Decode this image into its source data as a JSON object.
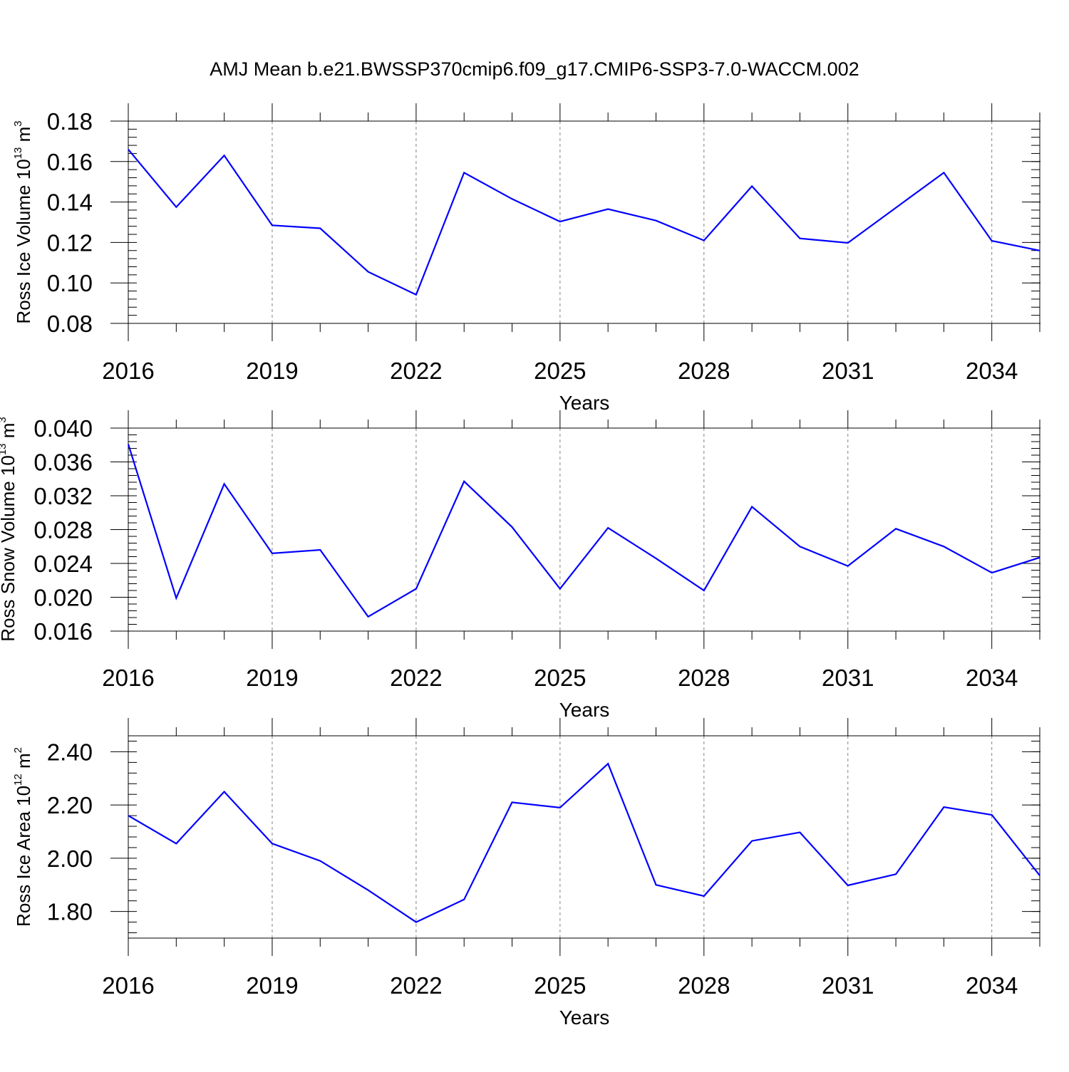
{
  "title": "AMJ Mean b.e21.BWSSP370cmip6.f09_g17.CMIP6-SSP3-7.0-WACCM.002",
  "line_color": "#0000ff",
  "chart_data": [
    {
      "type": "line",
      "title": "AMJ Mean b.e21.BWSSP370cmip6.f09_g17.CMIP6-SSP3-7.0-WACCM.002",
      "xlabel": "Years",
      "ylabel": {
        "text": "Ross Ice Volume 10",
        "exp": "13",
        "unit": " m",
        "unit_exp": "3"
      },
      "x": [
        2016,
        2017,
        2018,
        2019,
        2020,
        2021,
        2022,
        2023,
        2024,
        2025,
        2026,
        2027,
        2028,
        2029,
        2030,
        2031,
        2032,
        2033,
        2034,
        2035
      ],
      "series": [
        {
          "values": [
            0.166,
            0.1375,
            0.163,
            0.1285,
            0.127,
            0.1055,
            0.0942,
            0.1545,
            0.1415,
            0.1303,
            0.1365,
            0.1308,
            0.121,
            0.1478,
            0.122,
            0.1198,
            0.1372,
            0.1545,
            0.1208,
            0.116
          ]
        }
      ],
      "xlim": [
        2016,
        2035
      ],
      "ylim": [
        0.08,
        0.18
      ],
      "xticks": [
        2016,
        2019,
        2022,
        2025,
        2028,
        2031,
        2034
      ],
      "xtick_labels": [
        "2016",
        "2019",
        "2022",
        "2025",
        "2028",
        "2031",
        "2034"
      ],
      "yticks": [
        0.08,
        0.1,
        0.12,
        0.14,
        0.16,
        0.18
      ],
      "ytick_labels": [
        "0.08",
        "0.10",
        "0.12",
        "0.14",
        "0.16",
        "0.18"
      ],
      "grid": "vertical-dashed"
    },
    {
      "type": "line",
      "xlabel": "Years",
      "ylabel": {
        "text": "Ross Snow Volume 10",
        "exp": "13",
        "unit": " m",
        "unit_exp": "3"
      },
      "x": [
        2016,
        2017,
        2018,
        2019,
        2020,
        2021,
        2022,
        2023,
        2024,
        2025,
        2026,
        2027,
        2028,
        2029,
        2030,
        2031,
        2032,
        2033,
        2034,
        2035
      ],
      "series": [
        {
          "values": [
            0.0381,
            0.0199,
            0.0334,
            0.0252,
            0.0256,
            0.0177,
            0.021,
            0.0337,
            0.0283,
            0.021,
            0.0282,
            0.0246,
            0.0208,
            0.0307,
            0.026,
            0.0237,
            0.0281,
            0.026,
            0.0229,
            0.0247
          ]
        }
      ],
      "xlim": [
        2016,
        2035
      ],
      "ylim": [
        0.016,
        0.04
      ],
      "xticks": [
        2016,
        2019,
        2022,
        2025,
        2028,
        2031,
        2034
      ],
      "xtick_labels": [
        "2016",
        "2019",
        "2022",
        "2025",
        "2028",
        "2031",
        "2034"
      ],
      "yticks": [
        0.016,
        0.02,
        0.024,
        0.028,
        0.032,
        0.036,
        0.04
      ],
      "ytick_labels": [
        "0.016",
        "0.020",
        "0.024",
        "0.028",
        "0.032",
        "0.036",
        "0.040"
      ],
      "grid": "vertical-dashed"
    },
    {
      "type": "line",
      "xlabel": "Years",
      "ylabel": {
        "text": "Ross Ice Area 10",
        "exp": "12",
        "unit": " m",
        "unit_exp": "2"
      },
      "x": [
        2016,
        2017,
        2018,
        2019,
        2020,
        2021,
        2022,
        2023,
        2024,
        2025,
        2026,
        2027,
        2028,
        2029,
        2030,
        2031,
        2032,
        2033,
        2034,
        2035
      ],
      "series": [
        {
          "values": [
            2.16,
            2.055,
            2.25,
            2.055,
            1.99,
            1.88,
            1.76,
            1.845,
            2.21,
            2.19,
            2.355,
            1.9,
            1.858,
            2.065,
            2.097,
            1.898,
            1.94,
            2.192,
            2.163,
            1.935
          ]
        }
      ],
      "xlim": [
        2016,
        2035
      ],
      "ylim": [
        1.7,
        2.46
      ],
      "xticks": [
        2016,
        2019,
        2022,
        2025,
        2028,
        2031,
        2034
      ],
      "xtick_labels": [
        "2016",
        "2019",
        "2022",
        "2025",
        "2028",
        "2031",
        "2034"
      ],
      "yticks": [
        1.8,
        2.0,
        2.2,
        2.4
      ],
      "ytick_labels": [
        "1.80",
        "2.00",
        "2.20",
        "2.40"
      ],
      "grid": "vertical-dashed"
    }
  ]
}
